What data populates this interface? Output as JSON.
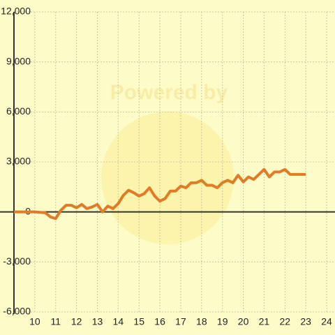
{
  "chart_data": {
    "type": "line",
    "watermark": "Powered by",
    "x": [
      9,
      10,
      10.5,
      10.75,
      11,
      11.25,
      11.5,
      11.75,
      12,
      12.25,
      12.5,
      12.75,
      13,
      13.25,
      13.5,
      13.75,
      14,
      14.25,
      14.5,
      14.75,
      15,
      15.25,
      15.5,
      15.75,
      16,
      16.25,
      16.5,
      16.75,
      17,
      17.25,
      17.5,
      17.75,
      18,
      18.25,
      18.5,
      18.75,
      19,
      19.25,
      19.5,
      19.75,
      20,
      20.25,
      20.5,
      20.75,
      21,
      21.25,
      21.5,
      21.75,
      22,
      22.25,
      22.5,
      22.75,
      23
    ],
    "series": [
      {
        "color": "#e07b26",
        "values": [
          0,
          0,
          -50,
          -300,
          -400,
          100,
          400,
          400,
          250,
          450,
          200,
          300,
          450,
          0,
          350,
          200,
          500,
          1000,
          1300,
          1150,
          950,
          1100,
          1450,
          950,
          650,
          800,
          1250,
          1250,
          1550,
          1450,
          1750,
          1750,
          1900,
          1600,
          1600,
          1450,
          1750,
          1900,
          1750,
          2200,
          1800,
          2100,
          1950,
          2250,
          2550,
          2100,
          2400,
          2400,
          2550,
          2250,
          2250,
          2250,
          2250
        ]
      }
    ],
    "xlim": [
      9,
      24.4
    ],
    "xticks": [
      10,
      11,
      12,
      13,
      14,
      15,
      16,
      17,
      18,
      19,
      20,
      21,
      22,
      23,
      24
    ],
    "ylim": [
      -6000,
      12000
    ],
    "yticks": [
      {
        "value": -6000,
        "label": "-6,000"
      },
      {
        "value": -3000,
        "label": "-3,000"
      },
      0,
      {
        "value": 3000,
        "label": "3,000"
      },
      {
        "value": 6000,
        "label": "6,000"
      },
      {
        "value": 9000,
        "label": "9,000"
      },
      {
        "value": 12000,
        "label": "12,000"
      }
    ],
    "grid": true
  }
}
